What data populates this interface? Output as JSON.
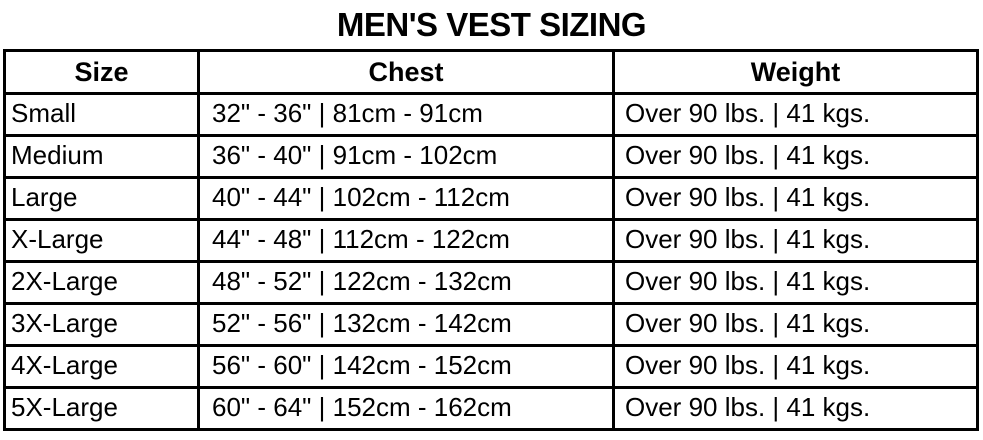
{
  "title": "MEN'S VEST SIZING",
  "colors": {
    "background": "#ffffff",
    "text": "#000000",
    "border": "#000000"
  },
  "table": {
    "headers": {
      "size": "Size",
      "chest": "Chest",
      "weight": "Weight"
    },
    "rows": [
      {
        "size": "Small",
        "chest": "32\" - 36\" | 81cm - 91cm",
        "weight": "Over 90 lbs. | 41 kgs."
      },
      {
        "size": "Medium",
        "chest": "36\" - 40\" | 91cm - 102cm",
        "weight": "Over 90 lbs. | 41 kgs."
      },
      {
        "size": "Large",
        "chest": "40\" - 44\" | 102cm - 112cm",
        "weight": "Over 90 lbs. | 41 kgs."
      },
      {
        "size": "X-Large",
        "chest": "44\" - 48\" | 112cm - 122cm",
        "weight": "Over 90 lbs. | 41 kgs."
      },
      {
        "size": "2X-Large",
        "chest": "48\" - 52\" | 122cm - 132cm",
        "weight": "Over 90 lbs. | 41 kgs."
      },
      {
        "size": "3X-Large",
        "chest": "52\" - 56\" | 132cm - 142cm",
        "weight": "Over 90 lbs. | 41 kgs."
      },
      {
        "size": "4X-Large",
        "chest": "56\" - 60\" | 142cm - 152cm",
        "weight": "Over 90 lbs. | 41 kgs."
      },
      {
        "size": "5X-Large",
        "chest": "60\" - 64\" | 152cm - 162cm",
        "weight": "Over 90 lbs. | 41 kgs."
      }
    ]
  },
  "chart_data": {
    "type": "table",
    "title": "MEN'S VEST SIZING",
    "columns": [
      "Size",
      "Chest",
      "Weight"
    ],
    "rows": [
      [
        "Small",
        "32\" - 36\" | 81cm - 91cm",
        "Over 90 lbs. | 41 kgs."
      ],
      [
        "Medium",
        "36\" - 40\" | 91cm - 102cm",
        "Over 90 lbs. | 41 kgs."
      ],
      [
        "Large",
        "40\" - 44\" | 102cm - 112cm",
        "Over 90 lbs. | 41 kgs."
      ],
      [
        "X-Large",
        "44\" - 48\" | 112cm - 122cm",
        "Over 90 lbs. | 41 kgs."
      ],
      [
        "2X-Large",
        "48\" - 52\" | 122cm - 132cm",
        "Over 90 lbs. | 41 kgs."
      ],
      [
        "3X-Large",
        "52\" - 56\" | 132cm - 142cm",
        "Over 90 lbs. | 41 kgs."
      ],
      [
        "4X-Large",
        "56\" - 60\" | 142cm - 152cm",
        "Over 90 lbs. | 41 kgs."
      ],
      [
        "5X-Large",
        "60\" - 64\" | 152cm - 162cm",
        "Over 90 lbs. | 41 kgs."
      ]
    ]
  }
}
